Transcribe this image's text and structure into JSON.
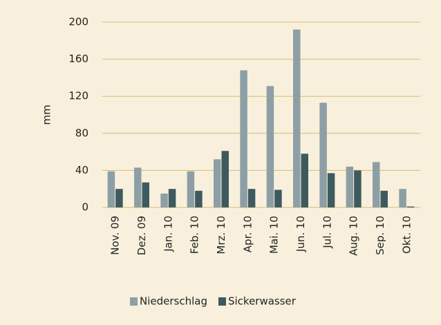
{
  "chart_data": {
    "type": "bar",
    "y_label": "mm",
    "categories": [
      "Nov. 09",
      "Dez. 09",
      "Jan. 10",
      "Feb. 10",
      "Mrz. 10",
      "Apr. 10",
      "Mai. 10",
      "Jun. 10",
      "Jul. 10",
      "Aug. 10",
      "Sep. 10",
      "Okt. 10"
    ],
    "series": [
      {
        "name": "Niederschlag",
        "color": "#8d9fa4",
        "values": [
          39,
          43,
          15,
          39,
          52,
          148,
          131,
          192,
          113,
          44,
          49,
          20
        ]
      },
      {
        "name": "Sickerwasser",
        "color": "#3e5a5f",
        "values": [
          20,
          27,
          20,
          18,
          61,
          20,
          19,
          58,
          37,
          40,
          18,
          1
        ]
      }
    ],
    "ylim": [
      0,
      200
    ],
    "yticks": [
      0,
      40,
      80,
      120,
      160,
      200
    ],
    "grid": true,
    "grid_color": "#d6bb6e",
    "legend": "bottom"
  }
}
